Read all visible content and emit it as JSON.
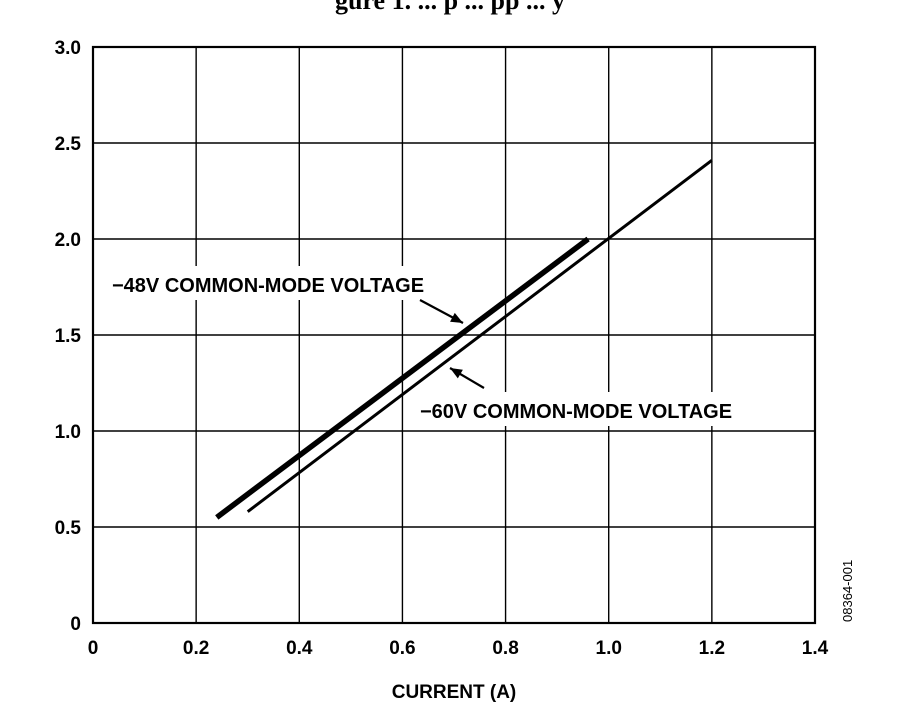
{
  "header": {
    "partial_text": "gure 1. ... p ... pp ... y"
  },
  "figure_id": "08364-001",
  "chart_data": {
    "type": "line",
    "title": "",
    "xlabel": "CURRENT (A)",
    "ylabel": "",
    "xlim": [
      0,
      1.4
    ],
    "ylim": [
      0,
      3.0
    ],
    "xticks": [
      "0",
      "0.2",
      "0.4",
      "0.6",
      "0.8",
      "1.0",
      "1.2",
      "1.4"
    ],
    "yticks": [
      "0",
      "0.5",
      "1.0",
      "1.5",
      "2.0",
      "2.5",
      "3.0"
    ],
    "grid": true,
    "series": [
      {
        "name": "−48V COMMON-MODE VOLTAGE",
        "x": [
          0.24,
          0.96
        ],
        "y": [
          0.55,
          2.0
        ],
        "line_weight": "heavy",
        "color": "#000000"
      },
      {
        "name": "−60V COMMON-MODE VOLTAGE",
        "x": [
          0.3,
          1.2
        ],
        "y": [
          0.58,
          2.41
        ],
        "line_weight": "regular",
        "color": "#000000"
      }
    ],
    "annotations": [
      {
        "text": "−48V COMMON-MODE VOLTAGE",
        "points_to_series": 0
      },
      {
        "text": "−60V COMMON-MODE VOLTAGE",
        "points_to_series": 1
      }
    ]
  }
}
